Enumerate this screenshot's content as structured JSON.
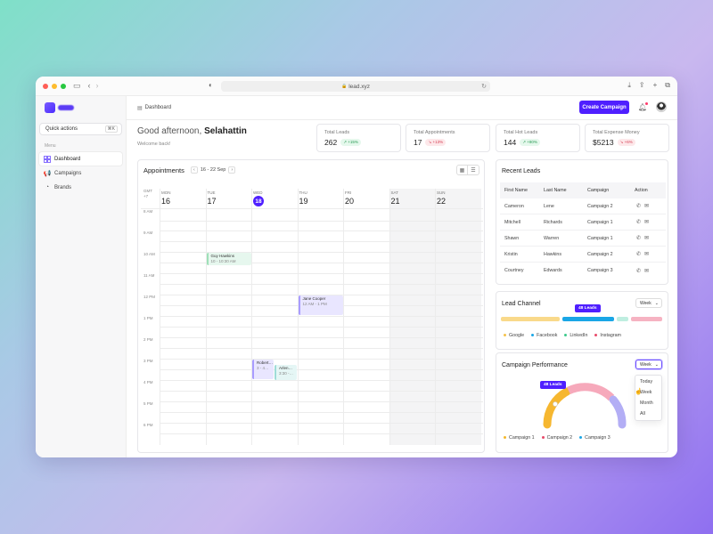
{
  "browser": {
    "url": "lead.xyz",
    "traffic": [
      "#ff5f57",
      "#febc2e",
      "#28c840"
    ]
  },
  "sidebar": {
    "quick_actions": "Quick actions",
    "quick_shortcut": "⌘K",
    "menu_label": "Menu",
    "items": [
      {
        "label": "Dashboard",
        "icon": "grid-icon",
        "active": true
      },
      {
        "label": "Campaigns",
        "icon": "megaphone-icon",
        "active": false
      },
      {
        "label": "Brands",
        "icon": "palette-icon",
        "active": false
      }
    ]
  },
  "header": {
    "breadcrumb": "Dashboard",
    "create_button": "Create Campaign"
  },
  "greeting": {
    "prefix": "Good afternoon,",
    "name": "Selahattin",
    "sub": "Welcome back!"
  },
  "stats": [
    {
      "label": "Total Leads",
      "value": "262",
      "change": "+15%",
      "trend": "up"
    },
    {
      "label": "Total Appointments",
      "value": "17",
      "change": "+13%",
      "trend": "down"
    },
    {
      "label": "Total Hot Leads",
      "value": "144",
      "change": "+80%",
      "trend": "up"
    },
    {
      "label": "Total Expense Money",
      "value": "$5213",
      "change": "+6%",
      "trend": "down"
    }
  ],
  "appointments": {
    "title": "Appointments",
    "range": "16 - 22 Sep",
    "gmt": "GMT",
    "gmt_offset": "+7",
    "days": [
      {
        "dow": "MON",
        "num": "16"
      },
      {
        "dow": "TUE",
        "num": "17"
      },
      {
        "dow": "WED",
        "num": "18",
        "today": true
      },
      {
        "dow": "THU",
        "num": "19"
      },
      {
        "dow": "FRI",
        "num": "20"
      },
      {
        "dow": "SAT",
        "num": "21",
        "weekend": true
      },
      {
        "dow": "SUN",
        "num": "22",
        "weekend": true
      }
    ],
    "hours": [
      "8 AM",
      "9 AM",
      "10 AM",
      "11 AM",
      "12 PM",
      "1 PM",
      "2 PM",
      "3 PM",
      "4 PM",
      "5 PM",
      "6 PM"
    ],
    "events": [
      {
        "title": "Guy Hawkins",
        "time": "10 - 10:30 AM",
        "day": "TUE",
        "color": "green"
      },
      {
        "title": "Jane Cooper",
        "time": "12 AM - 1 PM",
        "day": "THU",
        "color": "purple"
      },
      {
        "title": "Robert…",
        "time": "3 - 4…",
        "day": "WED",
        "color": "purple"
      },
      {
        "title": "Arlen…",
        "time": "3:30 -…",
        "day": "WED",
        "color": "teal"
      }
    ]
  },
  "recent_leads": {
    "title": "Recent Leads",
    "columns": [
      "First Name",
      "Last Name",
      "Campaign",
      "Action"
    ],
    "rows": [
      [
        "Cameron",
        "Lene",
        "Campaign 2"
      ],
      [
        "Mitchell",
        "Richards",
        "Campaign 1"
      ],
      [
        "Shawn",
        "Warren",
        "Campaign 1"
      ],
      [
        "Kristin",
        "Hawkins",
        "Campaign 2"
      ],
      [
        "Courtney",
        "Edwards",
        "Campaign 3"
      ]
    ]
  },
  "lead_channel": {
    "title": "Lead Channel",
    "period": "Week",
    "tooltip": "48 Leads",
    "legend": [
      {
        "label": "Google",
        "color": "#f5c24a"
      },
      {
        "label": "Facebook",
        "color": "#1aa6e6"
      },
      {
        "label": "LinkedIn",
        "color": "#3cc98b"
      },
      {
        "label": "Instagram",
        "color": "#e84a6a"
      }
    ],
    "bars": [
      {
        "color": "#f9d98a"
      },
      {
        "color": "#1aa6e6"
      },
      {
        "color": "#bfeee0"
      },
      {
        "color": "#f6b3c2"
      }
    ]
  },
  "campaign_performance": {
    "title": "Campaign Performance",
    "period": "Week",
    "tooltip": "48 Leads",
    "options": [
      "Today",
      "Week",
      "Month",
      "All"
    ],
    "legend": [
      {
        "label": "Campaign 1",
        "color": "#f5b82a"
      },
      {
        "label": "Campaign 2",
        "color": "#e84a6a"
      },
      {
        "label": "Campaign 3",
        "color": "#1aa6e6"
      }
    ],
    "arc_colors": [
      "#f6b730",
      "#f6a9bb",
      "#b3aef5"
    ]
  }
}
